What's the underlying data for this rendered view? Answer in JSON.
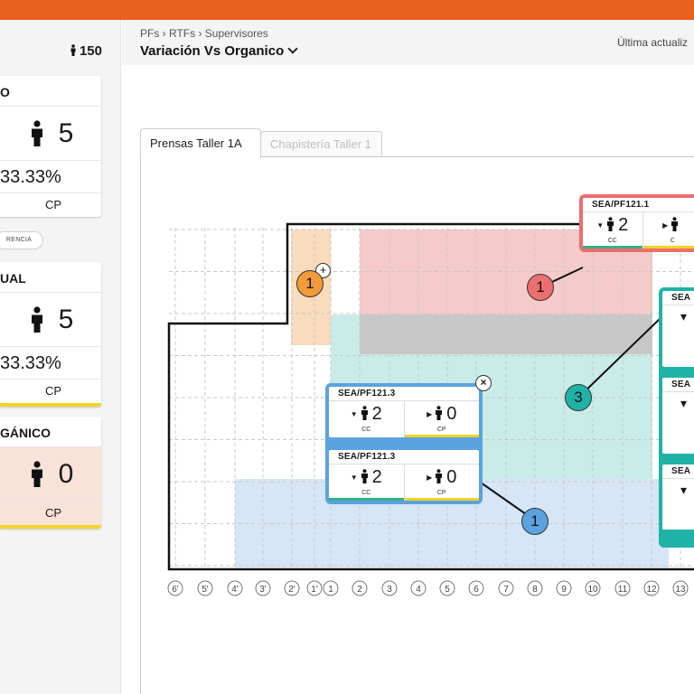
{
  "header": {
    "breadcrumb": "PFs › RTFs › Supervisores",
    "view_title": "Variación Vs Organico",
    "last_updated": "Última actualiz"
  },
  "sidebar": {
    "total": "150",
    "cards": [
      {
        "title": "O",
        "count": "5",
        "percent": "33.33%",
        "footer": "CP"
      },
      {
        "title": "UAL",
        "count": "5",
        "percent": "33.33%",
        "footer": "CP"
      },
      {
        "title": "GÁNICO",
        "count": "0",
        "footer": "CP"
      }
    ],
    "pill": "RENCIA"
  },
  "tabs": [
    {
      "label": "Prensas Taller 1A",
      "active": true
    },
    {
      "label": "Chapistería Taller 1",
      "active": false
    }
  ],
  "grid": {
    "columns": [
      "6'",
      "5'",
      "4'",
      "3'",
      "2'",
      "1'",
      "1",
      "2",
      "3",
      "4",
      "5",
      "6",
      "7",
      "8",
      "9",
      "10",
      "11",
      "12",
      "13"
    ]
  },
  "badges": [
    {
      "value": "1",
      "color": "#f39a3a"
    },
    {
      "value": "1",
      "color": "#ec6e6e"
    },
    {
      "value": "3",
      "color": "#1fb3a6"
    },
    {
      "value": "1",
      "color": "#5ba2e0"
    }
  ],
  "machines": {
    "red_card": {
      "title": "SEA/PF121.1",
      "left_value": "2",
      "left_label": "CC",
      "right_label": "C"
    },
    "teal_card": {
      "titles": [
        "SEA",
        "SEA",
        "SEA"
      ]
    },
    "blue_card": [
      {
        "title": "SEA/PF121.3",
        "cc_value": "2",
        "cc_label": "CC",
        "cp_value": "0",
        "cp_label": "CP"
      },
      {
        "title": "SEA/PF121.3",
        "cc_value": "2",
        "cc_label": "CC",
        "cp_value": "0",
        "cp_label": "CP"
      }
    ]
  },
  "colors": {
    "accent_orange": "#e8601e",
    "zone_red": "#f4caca",
    "zone_teal": "#c9ece9",
    "zone_blue": "#d6e6f6",
    "zone_orange": "#f9dbbd",
    "zone_gray": "#c7c7c7",
    "status_green": "#33b08a",
    "status_yellow": "#f2d329"
  }
}
